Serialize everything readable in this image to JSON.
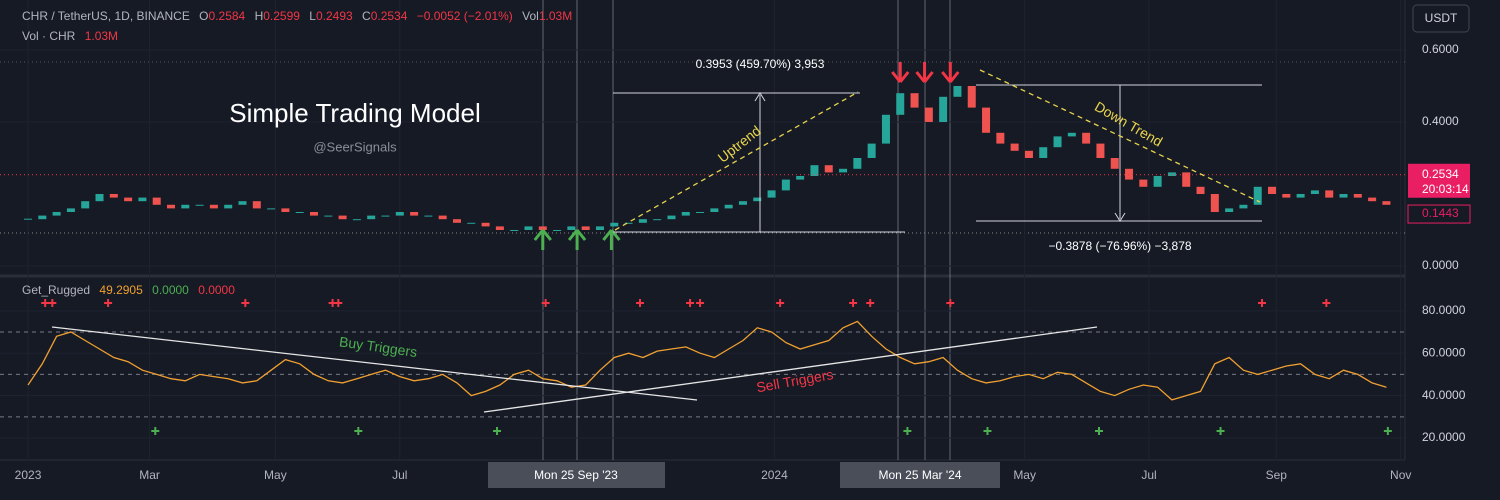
{
  "header": {
    "symbol": "CHR / TetherUS, 1D, BINANCE",
    "o_label": "O",
    "open": "0.2584",
    "h_label": "H",
    "high": "0.2599",
    "l_label": "L",
    "low": "0.2493",
    "c_label": "C",
    "close": "0.2534",
    "change": "−0.0052 (−2.01%)",
    "vol_label": "Vol",
    "vol": "1.03M",
    "vol_series": "Vol · CHR",
    "vol_series_value": "1.03M",
    "currency": "USDT"
  },
  "annotations": {
    "title": "Simple Trading Model",
    "handle": "@SeerSignals",
    "uptrend": "Uptrend",
    "downtrend": "Down Trend",
    "up_measure": "0.3953 (459.70%) 3,953",
    "down_measure": "−0.3878 (−76.96%) −3,878",
    "buy_triggers": "Buy Triggers",
    "sell_triggers": "Sell Triggers",
    "crosshair_1": "Mon 25 Sep '23",
    "crosshair_2": "Mon 25 Mar '24"
  },
  "chart_data": [
    {
      "type": "candlestick",
      "name": "CHR / TetherUS",
      "values": [
        0.13,
        0.14,
        0.15,
        0.16,
        0.18,
        0.2,
        0.19,
        0.18,
        0.19,
        0.17,
        0.16,
        0.17,
        0.17,
        0.16,
        0.17,
        0.18,
        0.16,
        0.16,
        0.15,
        0.15,
        0.14,
        0.14,
        0.13,
        0.13,
        0.14,
        0.14,
        0.15,
        0.14,
        0.14,
        0.13,
        0.12,
        0.12,
        0.11,
        0.1,
        0.1,
        0.11,
        0.1,
        0.1,
        0.11,
        0.1,
        0.11,
        0.12,
        0.12,
        0.13,
        0.13,
        0.14,
        0.15,
        0.15,
        0.16,
        0.17,
        0.18,
        0.19,
        0.21,
        0.24,
        0.25,
        0.28,
        0.26,
        0.27,
        0.3,
        0.34,
        0.42,
        0.48,
        0.44,
        0.4,
        0.47,
        0.5,
        0.44,
        0.37,
        0.34,
        0.32,
        0.3,
        0.33,
        0.36,
        0.37,
        0.34,
        0.3,
        0.27,
        0.24,
        0.22,
        0.25,
        0.26,
        0.22,
        0.2,
        0.15,
        0.16,
        0.17,
        0.22,
        0.2,
        0.19,
        0.2,
        0.21,
        0.19,
        0.2,
        0.19,
        0.18,
        0.17
      ],
      "up_color": "#26a69a",
      "down_color": "#ef5350",
      "xlim": [
        -1.96,
        96.3
      ],
      "xticks": [
        {
          "value": 0,
          "label": "2023"
        },
        {
          "value": 8.5,
          "label": "Mar"
        },
        {
          "value": 17.3,
          "label": "May"
        },
        {
          "value": 26,
          "label": "Jul"
        },
        {
          "value": 52.2,
          "label": "2024"
        },
        {
          "value": 69.7,
          "label": "May"
        },
        {
          "value": 78.4,
          "label": "Jul"
        },
        {
          "value": 87.3,
          "label": "Sep"
        },
        {
          "value": 96,
          "label": "Nov"
        }
      ],
      "ylim": [
        -0.0167,
        0.7389
      ],
      "yticks": [
        {
          "value": 0,
          "label": "0.0000"
        },
        {
          "value": 0.4,
          "label": "0.4000"
        },
        {
          "value": 0.6,
          "label": "0.6000"
        }
      ],
      "last_price": {
        "value": 0.2534,
        "label": "0.2534"
      },
      "countdown": "20:03:14",
      "prev_level": {
        "value": 0.1443,
        "label": "0.1443"
      },
      "buy_arrows": [
        36.0,
        38.4,
        40.8
      ],
      "sell_arrows": [
        61.0,
        62.7,
        64.5
      ]
    },
    {
      "type": "line",
      "name": "Get_Rugged",
      "legend_values": [
        "49.2905",
        "0.0000",
        "0.0000"
      ],
      "values": [
        45,
        55,
        68,
        70,
        66,
        62,
        58,
        56,
        52,
        50,
        48,
        47,
        50,
        49,
        48,
        46,
        47,
        52,
        57,
        55,
        50,
        47,
        46,
        48,
        50,
        52,
        49,
        47,
        48,
        50,
        46,
        40,
        42,
        45,
        50,
        52,
        48,
        47,
        44,
        45,
        52,
        58,
        60,
        58,
        61,
        62,
        63,
        60,
        58,
        62,
        66,
        72,
        70,
        65,
        62,
        64,
        66,
        72,
        75,
        68,
        62,
        58,
        55,
        56,
        58,
        52,
        48,
        46,
        47,
        49,
        50,
        48,
        51,
        50,
        46,
        42,
        40,
        43,
        45,
        44,
        38,
        40,
        42,
        55,
        58,
        52,
        50,
        52,
        54,
        55,
        50,
        48,
        52,
        50,
        46,
        44
      ],
      "color": "#f0a030",
      "ylim": [
        12,
        93.6
      ],
      "yticks": [
        {
          "value": 20,
          "label": "20.0000"
        },
        {
          "value": 40,
          "label": "40.0000"
        },
        {
          "value": 60,
          "label": "60.0000"
        },
        {
          "value": 80,
          "label": "80.0000"
        }
      ],
      "levels": [
        70,
        50,
        30
      ],
      "sell_signals": [
        1.2,
        1.7,
        5.6,
        15.2,
        21.3,
        21.7,
        36.2,
        42.8,
        46.3,
        47.0,
        52.6,
        57.7,
        58.9,
        64.5,
        86.3,
        90.8
      ],
      "buy_signals": [
        8.9,
        23.1,
        32.8,
        61.5,
        67.1,
        74.9,
        83.4,
        95.1
      ]
    }
  ]
}
